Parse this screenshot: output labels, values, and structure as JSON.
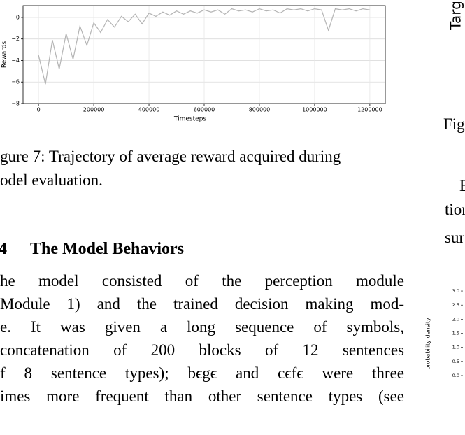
{
  "figure_7": {
    "chart_data": {
      "type": "line",
      "xlabel": "Timesteps",
      "ylabel": "Rewards",
      "x": [
        0,
        25000,
        50000,
        75000,
        100000,
        125000,
        150000,
        175000,
        200000,
        225000,
        250000,
        275000,
        300000,
        325000,
        350000,
        375000,
        400000,
        425000,
        450000,
        475000,
        500000,
        525000,
        550000,
        575000,
        600000,
        625000,
        650000,
        675000,
        700000,
        725000,
        750000,
        775000,
        800000,
        825000,
        850000,
        875000,
        900000,
        925000,
        950000,
        975000,
        1000000,
        1025000,
        1050000,
        1075000,
        1100000,
        1125000,
        1150000,
        1175000,
        1200000
      ],
      "values": [
        -3.5,
        -6.2,
        -2.1,
        -4.8,
        -1.5,
        -3.9,
        -0.8,
        -2.6,
        -0.5,
        -1.4,
        -0.2,
        -0.9,
        0.1,
        -0.4,
        0.3,
        -0.6,
        0.4,
        0.1,
        0.5,
        0.2,
        0.6,
        0.3,
        0.6,
        0.4,
        0.7,
        0.5,
        0.7,
        0.3,
        0.8,
        0.6,
        0.7,
        0.5,
        0.8,
        0.6,
        0.7,
        0.4,
        0.8,
        0.7,
        0.8,
        0.6,
        0.8,
        0.7,
        -1.2,
        0.8,
        0.7,
        0.8,
        0.6,
        0.8,
        0.7
      ],
      "color": "#b4b4b4",
      "grid": true,
      "xlim": [
        -56000,
        1256000
      ],
      "xticks": [
        0,
        200000,
        400000,
        600000,
        800000,
        1000000,
        1200000
      ],
      "ylim": [
        -8,
        1.1
      ],
      "yticks": [
        0,
        {
          "value": -2,
          "label": "−2"
        },
        {
          "value": -4,
          "label": "−4"
        },
        {
          "value": -6,
          "label": "−6"
        },
        {
          "value": -8,
          "label": "−8"
        }
      ]
    }
  },
  "caption": {
    "lines": [
      "gure 7: Trajectory of average reward acquired during",
      "odel evaluation."
    ]
  },
  "section": {
    "number": "4",
    "title": "The Model Behaviors"
  },
  "paragraph": {
    "lines": [
      "he model consisted of the perception module",
      "Module 1) and the trained decision making mod-",
      "e.  It was given a long sequence of symbols,",
      "concatenation of 200 blocks of 12 sentences",
      "f 8 sentence types); bϵgϵ and cϵfϵ were three",
      "imes more frequent than other sentence types (see"
    ]
  },
  "right_column": {
    "fragments": [
      "Targ",
      "Fig",
      "E",
      "tion",
      "sur"
    ],
    "figure": {
      "chart_data": {
        "type": "line",
        "ylabel": "probability density",
        "ylim": [
          -0.15,
          3.15
        ],
        "yticks": [
          {
            "value": 3,
            "label": "3.0"
          },
          {
            "value": 2.5,
            "label": "2.5"
          },
          {
            "value": 2,
            "label": "2.0"
          },
          {
            "value": 1.5,
            "label": "1.5"
          },
          {
            "value": 1,
            "label": "1.0"
          },
          {
            "value": 0.5,
            "label": "0.5"
          },
          {
            "value": 0,
            "label": "0.0"
          }
        ]
      }
    }
  }
}
